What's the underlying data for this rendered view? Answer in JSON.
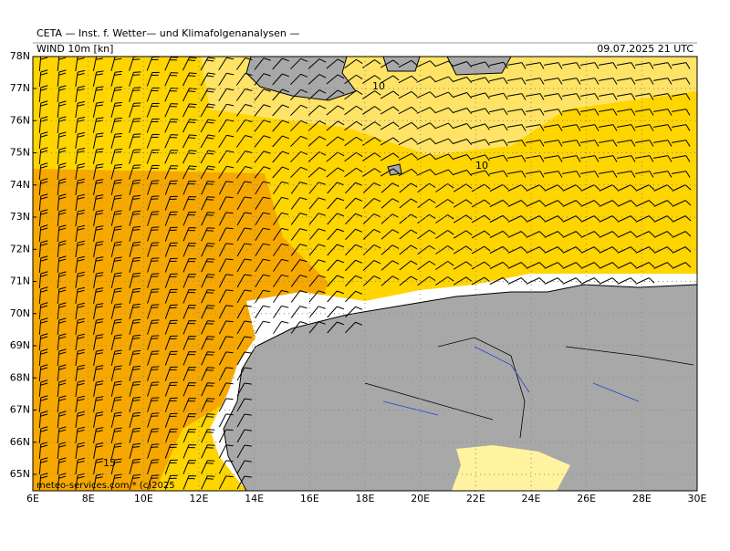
{
  "header": {
    "title": "CETA — Inst. f. Wetter— und Klimafolgenanalysen —",
    "parameter": "WIND 10m [kn]",
    "valid_time": "09.07.2025 21 UTC"
  },
  "map": {
    "lat_labels": [
      "78N",
      "77N",
      "76N",
      "75N",
      "74N",
      "73N",
      "72N",
      "71N",
      "70N",
      "69N",
      "68N",
      "67N",
      "66N",
      "65N"
    ],
    "lon_labels": [
      "6E",
      "8E",
      "10E",
      "12E",
      "14E",
      "16E",
      "18E",
      "20E",
      "22E",
      "24E",
      "26E",
      "28E",
      "30E"
    ],
    "contour_labels": [
      "10",
      "10",
      "15"
    ],
    "watermark": "meteo-services.com * (c)2025"
  }
}
